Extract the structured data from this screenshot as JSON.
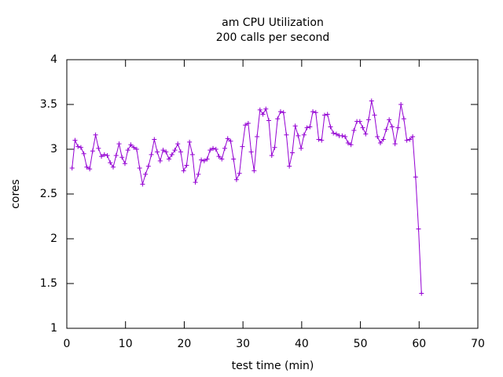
{
  "chart_data": {
    "type": "line",
    "title": "am CPU Utilization",
    "subtitle": "200 calls per second",
    "x_label": "test time (min)",
    "y_label": "cores",
    "xlim": [
      0,
      70
    ],
    "xticks": [
      0,
      10,
      20,
      30,
      40,
      50,
      60,
      70
    ],
    "ylim": [
      1,
      4
    ],
    "yticks": [
      1,
      1.5,
      2,
      2.5,
      3,
      3.5,
      4
    ],
    "grid": false,
    "x": [
      0.9,
      1.4,
      1.9,
      2.4,
      2.9,
      3.4,
      3.9,
      4.4,
      4.9,
      5.4,
      5.9,
      6.4,
      6.9,
      7.4,
      7.9,
      8.4,
      8.9,
      9.4,
      9.9,
      10.4,
      10.9,
      11.4,
      11.9,
      12.4,
      12.9,
      13.4,
      13.9,
      14.4,
      14.9,
      15.4,
      15.9,
      16.4,
      16.9,
      17.4,
      17.9,
      18.4,
      18.9,
      19.4,
      19.9,
      20.4,
      20.9,
      21.4,
      21.9,
      22.4,
      22.9,
      23.4,
      23.9,
      24.4,
      24.9,
      25.4,
      25.9,
      26.4,
      26.9,
      27.4,
      27.9,
      28.4,
      28.9,
      29.4,
      29.9,
      30.4,
      30.9,
      31.4,
      31.9,
      32.4,
      32.9,
      33.4,
      33.9,
      34.4,
      34.9,
      35.4,
      35.9,
      36.4,
      36.9,
      37.4,
      37.9,
      38.4,
      38.9,
      39.4,
      39.9,
      40.4,
      40.9,
      41.4,
      41.9,
      42.4,
      42.9,
      43.4,
      43.9,
      44.4,
      44.9,
      45.4,
      45.9,
      46.4,
      46.9,
      47.4,
      47.9,
      48.4,
      48.9,
      49.4,
      49.9,
      50.4,
      50.9,
      51.4,
      51.9,
      52.4,
      52.9,
      53.4,
      53.9,
      54.4,
      54.9,
      55.4,
      55.9,
      56.4,
      56.9,
      57.4,
      57.9,
      58.4,
      58.9,
      59.4,
      59.9,
      60.4
    ],
    "series": [
      {
        "color": "#9400d3",
        "values": [
          2.79,
          3.1,
          3.03,
          3.02,
          2.95,
          2.8,
          2.78,
          2.98,
          3.16,
          3.01,
          2.92,
          2.94,
          2.93,
          2.85,
          2.8,
          2.93,
          3.06,
          2.91,
          2.84,
          2.99,
          3.05,
          3.02,
          3.0,
          2.79,
          2.61,
          2.72,
          2.81,
          2.94,
          3.11,
          2.97,
          2.87,
          2.99,
          2.97,
          2.89,
          2.94,
          2.99,
          3.06,
          2.97,
          2.76,
          2.82,
          3.08,
          2.94,
          2.63,
          2.72,
          2.88,
          2.87,
          2.89,
          2.99,
          3.01,
          3.0,
          2.92,
          2.89,
          3.01,
          3.12,
          3.09,
          2.89,
          2.66,
          2.73,
          3.03,
          3.27,
          3.29,
          2.97,
          2.76,
          3.14,
          3.44,
          3.39,
          3.45,
          3.32,
          2.93,
          3.02,
          3.34,
          3.42,
          3.41,
          3.16,
          2.81,
          2.96,
          3.26,
          3.15,
          3.01,
          3.16,
          3.24,
          3.25,
          3.42,
          3.41,
          3.11,
          3.1,
          3.38,
          3.39,
          3.25,
          3.18,
          3.17,
          3.15,
          3.15,
          3.14,
          3.07,
          3.05,
          3.21,
          3.31,
          3.31,
          3.24,
          3.17,
          3.33,
          3.54,
          3.38,
          3.14,
          3.07,
          3.11,
          3.22,
          3.33,
          3.25,
          3.06,
          3.24,
          3.5,
          3.34,
          3.1,
          3.11,
          3.14,
          2.69,
          2.11,
          1.39
        ]
      }
    ]
  }
}
